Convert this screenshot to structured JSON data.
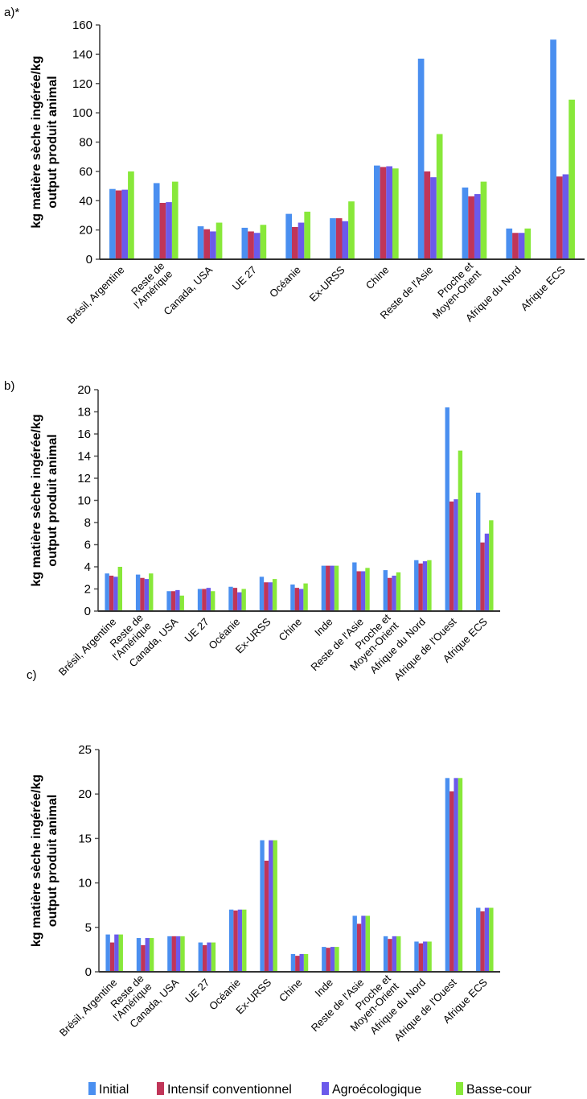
{
  "chart_data": [
    {
      "type": "bar",
      "panel_label": "a)*",
      "ylabel": "kg matière sèche ingérée/kg\noutput produit animal",
      "ylim": [
        0,
        160
      ],
      "yticks": [
        0,
        20,
        40,
        60,
        80,
        100,
        120,
        140,
        160
      ],
      "categories": [
        "Brésil, Argentine",
        "Reste de\nl'Amérique",
        "Canada, USA",
        "UE 27",
        "Océanie",
        "Ex-URSS",
        "Chine",
        "Reste de l'Asie",
        "Proche et\nMoyen-Orient",
        "Afrique du Nord",
        "Afrique ECS"
      ],
      "series": [
        {
          "name": "Initial",
          "values": [
            48,
            52,
            22.5,
            21.5,
            31,
            28,
            64,
            137,
            49,
            21,
            150
          ]
        },
        {
          "name": "Intensif conventionnel",
          "values": [
            47,
            38.5,
            20.5,
            19,
            22,
            28,
            63,
            60,
            43,
            18,
            56.5
          ]
        },
        {
          "name": "Agroécologique",
          "values": [
            47.5,
            39,
            19,
            18,
            25,
            26,
            63.5,
            56,
            44.5,
            18,
            58
          ]
        },
        {
          "name": "Basse-cour",
          "values": [
            60,
            53,
            25,
            23.5,
            32.5,
            39.5,
            62,
            85.5,
            53,
            21,
            109
          ]
        }
      ]
    },
    {
      "type": "bar",
      "panel_label": "b)",
      "ylabel": "kg matière sèche ingérée/kg\noutput produit animal",
      "ylim": [
        0,
        20
      ],
      "yticks": [
        0,
        2,
        4,
        6,
        8,
        10,
        12,
        14,
        16,
        18,
        20
      ],
      "categories": [
        "Brésil, Argentine",
        "Reste de\nl'Amérique",
        "Canada, USA",
        "UE 27",
        "Océanie",
        "Ex-URSS",
        "Chine",
        "Inde",
        "Reste de l'Asie",
        "Proche et\nMoyen-Orient",
        "Afrique du Nord",
        "Afrique de l'Ouest",
        "Afrique ECS"
      ],
      "series": [
        {
          "name": "Initial",
          "values": [
            3.4,
            3.3,
            1.8,
            2.0,
            2.2,
            3.1,
            2.4,
            4.1,
            4.4,
            3.7,
            4.6,
            18.4,
            10.7
          ]
        },
        {
          "name": "Intensif conventionnel",
          "values": [
            3.2,
            3.0,
            1.8,
            2.0,
            2.1,
            2.6,
            2.1,
            4.1,
            3.6,
            3.0,
            4.3,
            9.9,
            6.2
          ]
        },
        {
          "name": "Agroécologique",
          "values": [
            3.1,
            2.9,
            1.9,
            2.1,
            1.7,
            2.6,
            2.0,
            4.1,
            3.6,
            3.2,
            4.5,
            10.1,
            7.0
          ]
        },
        {
          "name": "Basse-cour",
          "values": [
            4.0,
            3.4,
            1.4,
            1.8,
            2.0,
            2.9,
            2.5,
            4.1,
            3.9,
            3.5,
            4.6,
            14.5,
            8.2
          ]
        }
      ]
    },
    {
      "type": "bar",
      "panel_label": "c)",
      "ylabel": "kg matière sèche ingérée/kg\noutput produit animal",
      "ylim": [
        0,
        25
      ],
      "yticks": [
        0,
        5,
        10,
        15,
        20,
        25
      ],
      "categories": [
        "Brésil, Argentine",
        "Reste de\nl'Amérique",
        "Canada, USA",
        "UE 27",
        "Océanie",
        "Ex-URSS",
        "Chine",
        "Inde",
        "Reste de l'Asie",
        "Proche et\nMoyen-Orient",
        "Afrique du Nord",
        "Afrique de l'Ouest",
        "Afrique ECS"
      ],
      "series": [
        {
          "name": "Initial",
          "values": [
            4.2,
            3.8,
            4.0,
            3.3,
            7.0,
            14.8,
            2.0,
            2.8,
            6.3,
            4.0,
            3.4,
            21.8,
            7.2
          ]
        },
        {
          "name": "Intensif conventionnel",
          "values": [
            3.3,
            3.0,
            4.0,
            3.0,
            6.9,
            12.5,
            1.8,
            2.7,
            5.4,
            3.7,
            3.2,
            20.3,
            6.8
          ]
        },
        {
          "name": "Agroécologique",
          "values": [
            4.2,
            3.8,
            4.0,
            3.3,
            7.0,
            14.8,
            2.0,
            2.8,
            6.3,
            4.0,
            3.4,
            21.8,
            7.2
          ]
        },
        {
          "name": "Basse-cour",
          "values": [
            4.2,
            3.8,
            4.0,
            3.3,
            7.0,
            14.8,
            2.0,
            2.8,
            6.3,
            4.0,
            3.4,
            21.8,
            7.2
          ]
        }
      ]
    }
  ],
  "legend": {
    "placement": "bottom",
    "items": [
      {
        "label": "Initial",
        "color": "#4a8ff0"
      },
      {
        "label": "Intensif conventionnel",
        "color": "#c03558"
      },
      {
        "label": "Agroécologique",
        "color": "#6b5aeb"
      },
      {
        "label": "Basse-cour",
        "color": "#88e83a"
      }
    ]
  }
}
